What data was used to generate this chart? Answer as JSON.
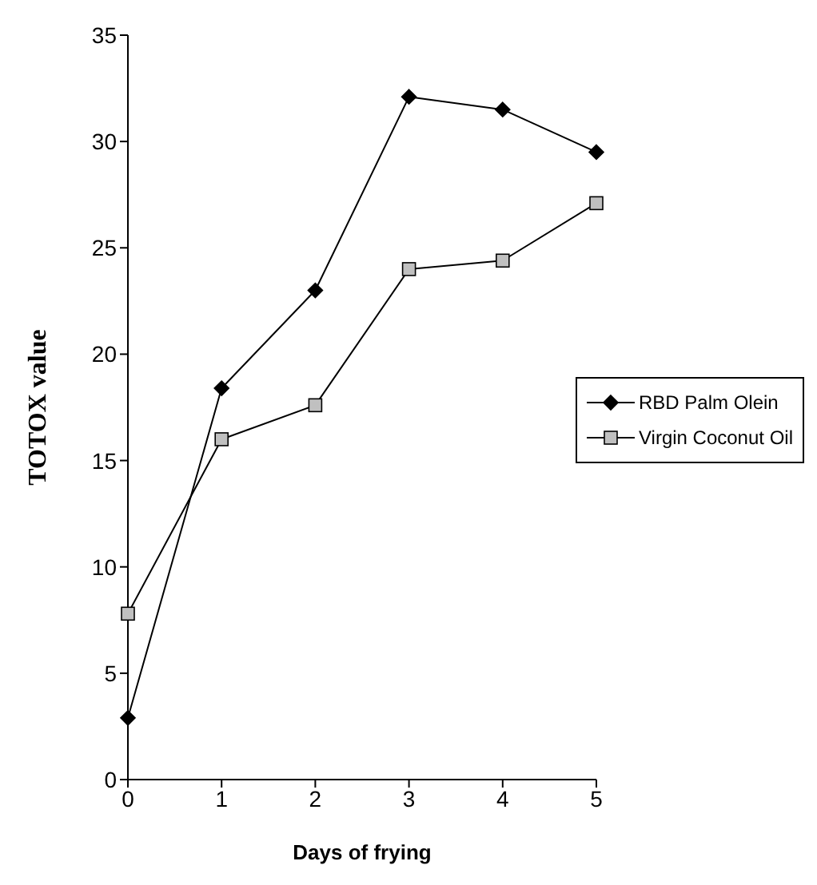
{
  "chart_data": {
    "type": "line",
    "xlabel": "Days of frying",
    "ylabel": "TOTOX value",
    "x": [
      0,
      1,
      2,
      3,
      4,
      5
    ],
    "series": [
      {
        "name": "RBD Palm Olein",
        "color": "#000000",
        "marker": "diamond",
        "values": [
          2.9,
          18.4,
          23.0,
          32.1,
          31.5,
          29.5
        ]
      },
      {
        "name": "Virgin Coconut Oil",
        "color": "#c0c0c0",
        "marker": "square",
        "values": [
          7.8,
          16.0,
          17.6,
          24.0,
          24.4,
          27.1
        ]
      }
    ],
    "xlim": [
      0,
      5
    ],
    "xticks": [
      0,
      1,
      2,
      3,
      4,
      5
    ],
    "ylim": [
      0,
      35
    ],
    "yticks": [
      0,
      5,
      10,
      15,
      20,
      25,
      30,
      35
    ],
    "grid": false,
    "legend": "right",
    "line_style": "solid"
  }
}
